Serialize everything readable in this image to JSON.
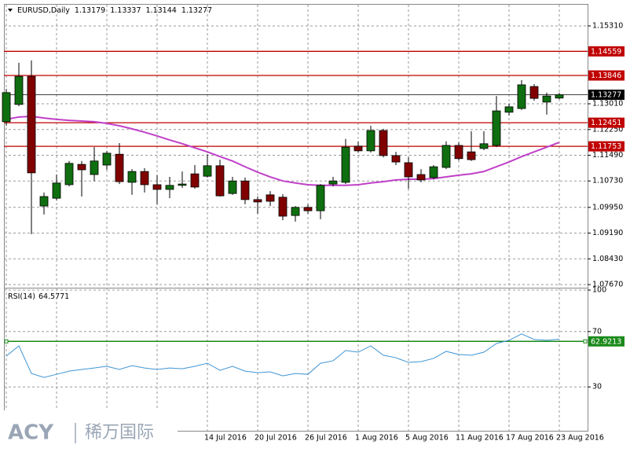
{
  "chart_data": [
    {
      "type": "candlestick",
      "title": "EURUSD,Daily",
      "categories": [
        null,
        null,
        null,
        null,
        null,
        null,
        null,
        null,
        null,
        null,
        null,
        null,
        null,
        null,
        null,
        null,
        "14 Jul 2016",
        null,
        null,
        null,
        "20 Jul 2016",
        null,
        null,
        null,
        "26 Jul 2016",
        null,
        null,
        null,
        "1 Aug 2016",
        null,
        null,
        null,
        "5 Aug 2016",
        null,
        null,
        null,
        "11 Aug 2016",
        null,
        null,
        null,
        "17 Aug 2016",
        null,
        null,
        null,
        "23 Aug 2016"
      ],
      "open": [
        1.1248,
        1.1299,
        1.1382,
        1.0999,
        1.1022,
        1.1062,
        1.1122,
        1.1092,
        1.112,
        1.1152,
        1.1069,
        1.1101,
        1.1062,
        1.1048,
        1.106,
        1.1094,
        1.1087,
        1.1118,
        1.1036,
        1.1073,
        1.1018,
        1.1032,
        1.1025,
        1.0971,
        1.0995,
        1.0985,
        1.1064,
        1.1069,
        1.1176,
        1.1162,
        1.1222,
        1.1148,
        1.1127,
        1.1092,
        1.1083,
        1.1113,
        1.1178,
        1.1159,
        1.1169,
        1.1178,
        1.1276,
        1.1287,
        1.1352,
        1.1306,
        1.13179
      ],
      "high": [
        1.1345,
        1.1422,
        1.1429,
        1.1039,
        1.1092,
        1.1132,
        1.1132,
        1.1173,
        1.1162,
        1.1185,
        1.1108,
        1.1111,
        1.109,
        1.1085,
        1.1101,
        1.112,
        1.1152,
        1.1136,
        1.1085,
        1.1083,
        1.1027,
        1.1043,
        1.1034,
        1.0999,
        1.1004,
        1.1064,
        1.1085,
        1.1197,
        1.119,
        1.1236,
        1.1227,
        1.1159,
        1.1143,
        1.1108,
        1.112,
        1.119,
        1.1187,
        1.122,
        1.122,
        1.1324,
        1.1301,
        1.1371,
        1.1359,
        1.1334,
        1.13337
      ],
      "low": [
        1.1236,
        1.1294,
        1.0916,
        1.0974,
        1.1015,
        1.1057,
        1.1027,
        1.1073,
        1.1106,
        1.1064,
        1.1032,
        1.1039,
        1.1004,
        1.1022,
        1.1053,
        1.105,
        1.1083,
        1.1027,
        1.1032,
        1.1004,
        1.0976,
        1.0999,
        1.0957,
        1.0953,
        1.0976,
        1.096,
        1.1057,
        1.1064,
        1.1157,
        1.1157,
        1.1143,
        1.112,
        1.105,
        1.1069,
        1.1078,
        1.1108,
        1.1134,
        1.1132,
        1.1164,
        1.1173,
        1.1266,
        1.1283,
        1.131,
        1.1269,
        1.13144
      ],
      "close": [
        1.1334,
        1.1382,
        1.1097,
        1.1027,
        1.1067,
        1.1125,
        1.1106,
        1.1132,
        1.1155,
        1.1071,
        1.1101,
        1.1062,
        1.1048,
        1.106,
        1.1064,
        1.1055,
        1.1118,
        1.1029,
        1.1073,
        1.1018,
        1.1011,
        1.1013,
        1.0969,
        1.0995,
        1.0985,
        1.106,
        1.1073,
        1.1173,
        1.1162,
        1.1222,
        1.1148,
        1.1129,
        1.1085,
        1.1076,
        1.1115,
        1.1178,
        1.1139,
        1.1136,
        1.1183,
        1.128,
        1.1292,
        1.1357,
        1.1317,
        1.1324,
        1.13277
      ],
      "up_color": "#0f6e0f",
      "down_color": "#800000",
      "moving_average": {
        "color": "#c040c8",
        "values": [
          1.1255,
          1.1262,
          1.1264,
          1.1259,
          1.1255,
          1.1252,
          1.125,
          1.1248,
          1.1243,
          1.1236,
          1.1227,
          1.1217,
          1.1206,
          1.1194,
          1.1183,
          1.1171,
          1.1159,
          1.1145,
          1.1132,
          1.1115,
          1.1099,
          1.1085,
          1.1073,
          1.1067,
          1.1062,
          1.106,
          1.106,
          1.106,
          1.1062,
          1.1067,
          1.1071,
          1.1076,
          1.1078,
          1.1078,
          1.108,
          1.1085,
          1.109,
          1.1094,
          1.1101,
          1.1115,
          1.1129,
          1.1145,
          1.1159,
          1.1173,
          1.1187
        ]
      },
      "levels": [
        {
          "value": 1.14559,
          "color": "#c00000"
        },
        {
          "value": 1.13846,
          "color": "#c00000"
        },
        {
          "value": 1.12451,
          "color": "#c00000"
        },
        {
          "value": 1.11753,
          "color": "#c00000"
        }
      ],
      "current_price_color": "#000000",
      "ylim": [
        1.076,
        1.1589
      ],
      "yticks": [
        {
          "value": 1.1531,
          "label": "1.15310"
        },
        {
          "value": 1.1301,
          "label": "1.13010"
        },
        {
          "value": 1.1225,
          "label": "1.12250"
        },
        {
          "value": 1.1149,
          "label": "1.11490"
        },
        {
          "value": 1.1073,
          "label": "1.10730"
        },
        {
          "value": 1.0995,
          "label": "1.09950"
        },
        {
          "value": 1.0919,
          "label": "1.09190"
        },
        {
          "value": 1.0843,
          "label": "1.08430"
        },
        {
          "value": 1.0767,
          "label": "1.07670"
        }
      ],
      "grid": true
    },
    {
      "type": "line",
      "title": "RSI(14)",
      "values": [
        52.3,
        59.7,
        39.7,
        36.9,
        39.1,
        41.4,
        42.6,
        43.7,
        44.9,
        42.6,
        45.4,
        43.7,
        42.6,
        43.7,
        43.1,
        44.9,
        47.1,
        42.0,
        44.9,
        41.4,
        40.3,
        40.9,
        38.0,
        39.7,
        39.1,
        47.1,
        48.9,
        56.3,
        55.1,
        59.7,
        52.9,
        51.1,
        47.7,
        48.3,
        50.6,
        55.7,
        53.4,
        52.9,
        55.1,
        61.4,
        63.7,
        68.3,
        64.3,
        63.7,
        64.5771
      ],
      "color": "#3f95d4",
      "level": {
        "value": 62.9213,
        "color": "#1a8a1a"
      },
      "ylim": [
        0,
        100
      ],
      "yticks": [
        100,
        70,
        30
      ],
      "grid": true
    }
  ],
  "watermark": {
    "brand": "ACY",
    "name": "稀万国际"
  }
}
